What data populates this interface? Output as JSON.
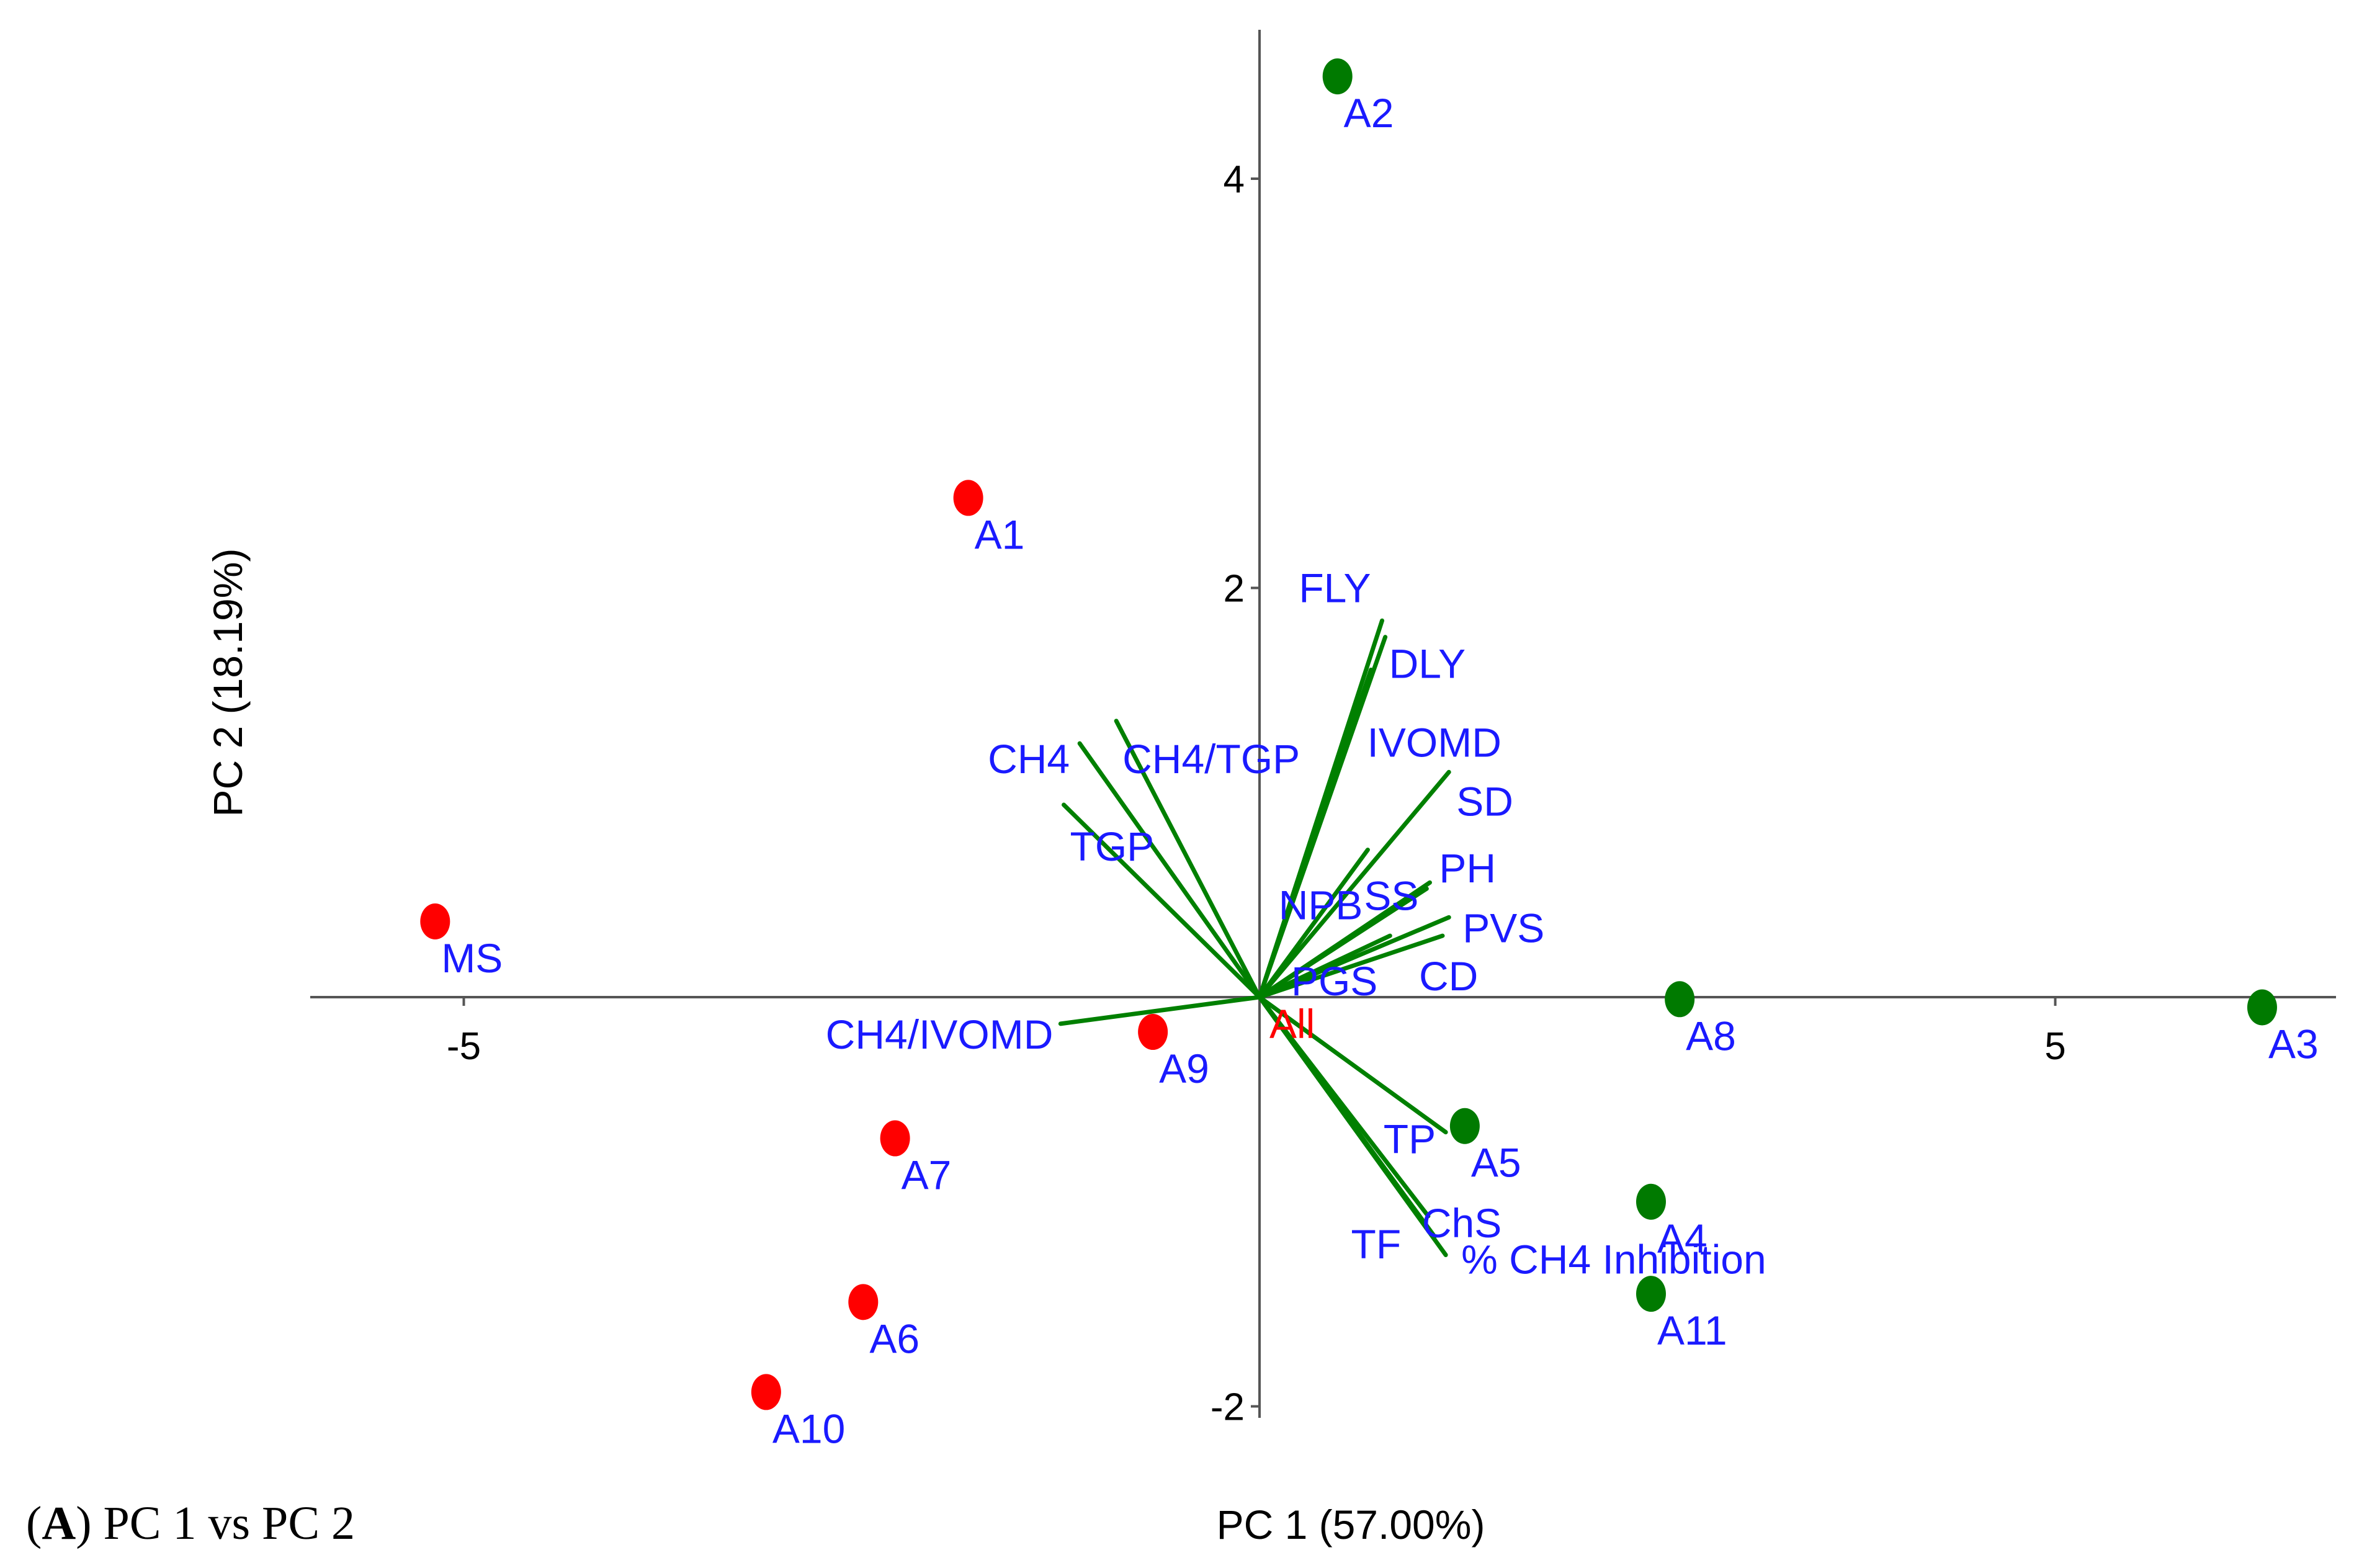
{
  "caption": {
    "prefix": "(",
    "letter": "A",
    "suffix": ") PC 1 vs PC 2"
  },
  "chart_data": {
    "type": "scatter",
    "subtype": "PCA biplot",
    "title": "",
    "xlabel": "PC 1 (57.00%)",
    "ylabel": "PC 2 (18.19%)",
    "xlim": [
      -6,
      6.8
    ],
    "ylim": [
      -2,
      4.5
    ],
    "x_ticks": [
      -5,
      5
    ],
    "y_ticks": [
      -2,
      2,
      4
    ],
    "grid": false,
    "colors": {
      "group_red": "#ff0000",
      "group_green": "#007a00",
      "vector": "#008000",
      "label": "#1a1aff",
      "origin_label": "#ff0000"
    },
    "origin": {
      "label": "All",
      "x": 0,
      "y": 0
    },
    "points": [
      {
        "label": "A1",
        "x": -1.83,
        "y": 2.44,
        "group": "red"
      },
      {
        "label": "A2",
        "x": 0.49,
        "y": 4.5,
        "group": "green"
      },
      {
        "label": "A3",
        "x": 6.3,
        "y": -0.05,
        "group": "green"
      },
      {
        "label": "A4",
        "x": 2.46,
        "y": -1.0,
        "group": "green"
      },
      {
        "label": "A5",
        "x": 1.29,
        "y": -0.63,
        "group": "green"
      },
      {
        "label": "A6",
        "x": -2.49,
        "y": -1.49,
        "group": "red"
      },
      {
        "label": "A7",
        "x": -2.29,
        "y": -0.69,
        "group": "red"
      },
      {
        "label": "A8",
        "x": 2.64,
        "y": -0.01,
        "group": "green"
      },
      {
        "label": "A9",
        "x": -0.67,
        "y": -0.17,
        "group": "red"
      },
      {
        "label": "A10",
        "x": -3.1,
        "y": -1.93,
        "group": "red"
      },
      {
        "label": "A11",
        "x": 2.46,
        "y": -1.45,
        "group": "green"
      },
      {
        "label": "MS",
        "x": -5.18,
        "y": 0.37,
        "group": "red"
      }
    ],
    "vectors": [
      {
        "label": "FLY",
        "x": 0.77,
        "y": 1.84
      },
      {
        "label": "DLY",
        "x": 0.79,
        "y": 1.76
      },
      {
        "label": "IVOMD",
        "x": 0.7,
        "y": 1.6
      },
      {
        "label": "CH4",
        "x": -1.13,
        "y": 1.24
      },
      {
        "label": "CH4/TGP",
        "x": -0.9,
        "y": 1.35
      },
      {
        "label": "TGP",
        "x": -1.23,
        "y": 0.94
      },
      {
        "label": "SD",
        "x": 1.19,
        "y": 1.1
      },
      {
        "label": "NPB",
        "x": 0.68,
        "y": 0.72
      },
      {
        "label": "SS",
        "x": 1.07,
        "y": 0.56
      },
      {
        "label": "PH",
        "x": 1.05,
        "y": 0.53
      },
      {
        "label": "PVS",
        "x": 1.19,
        "y": 0.39
      },
      {
        "label": "PGS",
        "x": 0.82,
        "y": 0.3
      },
      {
        "label": "CD",
        "x": 1.15,
        "y": 0.3
      },
      {
        "label": "CH4/IVOMD",
        "x": -1.25,
        "y": -0.13
      },
      {
        "label": "TP",
        "x": 1.17,
        "y": -0.66
      },
      {
        "label": "ChS",
        "x": 1.06,
        "y": -1.07
      },
      {
        "label": "TF",
        "x": 1.1,
        "y": -1.17
      },
      {
        "label": "% CH4 Inhibition",
        "x": 1.17,
        "y": -1.26
      }
    ]
  }
}
